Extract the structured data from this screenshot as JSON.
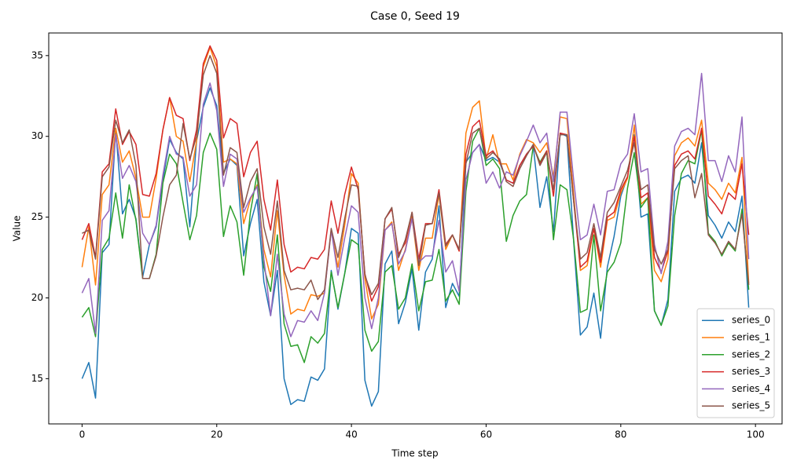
{
  "chart_data": {
    "type": "line",
    "title": "Case 0, Seed 19",
    "xlabel": "Time step",
    "ylabel": "Value",
    "x": [
      0,
      1,
      2,
      3,
      4,
      5,
      6,
      7,
      8,
      9,
      10,
      11,
      12,
      13,
      14,
      15,
      16,
      17,
      18,
      19,
      20,
      21,
      22,
      23,
      24,
      25,
      26,
      27,
      28,
      29,
      30,
      31,
      32,
      33,
      34,
      35,
      36,
      37,
      38,
      39,
      40,
      41,
      42,
      43,
      44,
      45,
      46,
      47,
      48,
      49,
      50,
      51,
      52,
      53,
      54,
      55,
      56,
      57,
      58,
      59,
      60,
      61,
      62,
      63,
      64,
      65,
      66,
      67,
      68,
      69,
      70,
      71,
      72,
      73,
      74,
      75,
      76,
      77,
      78,
      79,
      80,
      81,
      82,
      83,
      84,
      85,
      86,
      87,
      88,
      89,
      90,
      91,
      92,
      93,
      94,
      95,
      96,
      97,
      98,
      99
    ],
    "xlim": [
      -4.95,
      103.95
    ],
    "xticks": [
      0,
      20,
      40,
      60,
      80,
      100
    ],
    "ylim": [
      12.2,
      36.4
    ],
    "yticks": [
      15,
      20,
      25,
      30,
      35
    ],
    "legend": "lower right",
    "series": [
      {
        "name": "series_0",
        "color": "#1f77b4",
        "values": [
          15.0,
          16.0,
          13.8,
          22.8,
          23.3,
          30.4,
          25.2,
          26.1,
          24.9,
          21.3,
          23.3,
          24.4,
          27.3,
          29.8,
          29.0,
          28.6,
          24.4,
          29.7,
          31.8,
          33.0,
          31.9,
          27.7,
          28.6,
          28.2,
          22.6,
          24.6,
          26.1,
          21.0,
          18.9,
          21.7,
          15.0,
          13.4,
          13.7,
          13.6,
          15.1,
          14.9,
          15.6,
          21.7,
          19.3,
          21.5,
          24.3,
          24.0,
          14.9,
          13.3,
          14.2,
          22.1,
          22.9,
          18.4,
          19.7,
          21.8,
          18.0,
          21.6,
          22.4,
          25.7,
          19.4,
          20.9,
          20.1,
          28.4,
          29.0,
          29.5,
          28.5,
          28.7,
          28.4,
          27.3,
          27.1,
          28.2,
          28.9,
          29.4,
          25.6,
          27.5,
          24.1,
          30.2,
          30.0,
          23.5,
          17.7,
          18.2,
          20.3,
          17.5,
          21.9,
          23.8,
          26.3,
          27.5,
          30.1,
          25.0,
          25.2,
          19.2,
          18.3,
          19.9,
          26.6,
          27.4,
          27.6,
          27.1,
          29.6,
          25.1,
          24.5,
          23.7,
          24.7,
          24.1,
          26.3,
          19.4
        ]
      },
      {
        "name": "series_1",
        "color": "#ff7f0e",
        "values": [
          21.9,
          24.4,
          20.8,
          26.4,
          27.0,
          30.5,
          28.4,
          29.1,
          27.4,
          25.0,
          25.0,
          27.4,
          30.4,
          32.4,
          30.0,
          29.7,
          27.2,
          29.7,
          34.3,
          35.5,
          34.3,
          28.4,
          28.6,
          28.3,
          24.6,
          26.1,
          27.0,
          23.0,
          21.3,
          25.4,
          21.4,
          19.0,
          19.3,
          19.2,
          20.2,
          20.1,
          20.3,
          24.2,
          21.9,
          24.5,
          27.7,
          27.1,
          21.2,
          18.7,
          19.6,
          24.2,
          24.7,
          21.7,
          23.0,
          25.0,
          21.7,
          23.7,
          23.7,
          26.4,
          23.0,
          23.9,
          22.9,
          30.2,
          31.8,
          32.2,
          28.6,
          30.1,
          28.3,
          28.3,
          27.3,
          28.9,
          29.8,
          29.6,
          29.0,
          29.6,
          27.5,
          31.2,
          31.1,
          26.4,
          21.7,
          22.0,
          24.3,
          21.9,
          24.8,
          25.0,
          26.5,
          27.4,
          30.7,
          25.8,
          26.2,
          21.7,
          21.0,
          22.4,
          28.8,
          29.6,
          29.9,
          29.4,
          31.0,
          27.1,
          26.7,
          26.1,
          27.1,
          26.5,
          28.7,
          20.9
        ]
      },
      {
        "name": "series_2",
        "color": "#2ca02c",
        "values": [
          18.8,
          19.4,
          17.6,
          23.0,
          23.7,
          26.5,
          23.7,
          27.0,
          24.8,
          21.2,
          21.2,
          22.7,
          27.1,
          28.9,
          28.3,
          25.9,
          23.6,
          25.1,
          29.0,
          30.2,
          29.2,
          23.8,
          25.7,
          24.7,
          21.4,
          25.3,
          27.7,
          21.9,
          20.4,
          23.9,
          18.4,
          17.0,
          17.1,
          16.0,
          17.6,
          17.2,
          17.8,
          21.6,
          19.4,
          21.5,
          23.6,
          23.3,
          18.0,
          16.7,
          17.3,
          21.6,
          22.0,
          19.3,
          20.0,
          22.1,
          19.2,
          21.0,
          21.1,
          23.0,
          19.8,
          20.5,
          19.6,
          26.6,
          29.7,
          30.5,
          28.2,
          28.6,
          28.0,
          23.5,
          25.1,
          26.0,
          26.4,
          29.4,
          28.4,
          29.1,
          23.6,
          27.0,
          26.7,
          23.6,
          19.1,
          19.3,
          23.9,
          19.2,
          21.6,
          22.2,
          23.4,
          26.8,
          29.0,
          25.6,
          26.2,
          19.2,
          18.3,
          19.5,
          25.1,
          27.7,
          28.5,
          28.3,
          30.4,
          24.0,
          23.5,
          22.6,
          23.4,
          22.9,
          25.5,
          20.5
        ]
      },
      {
        "name": "series_3",
        "color": "#d62728",
        "values": [
          23.6,
          24.6,
          22.5,
          27.8,
          28.3,
          31.7,
          29.5,
          30.3,
          29.5,
          26.4,
          26.3,
          27.7,
          30.4,
          32.4,
          31.3,
          31.1,
          28.5,
          30.4,
          34.5,
          35.6,
          34.7,
          29.9,
          31.1,
          30.8,
          27.5,
          29.0,
          29.7,
          26.1,
          24.2,
          27.3,
          23.3,
          21.6,
          21.9,
          21.8,
          22.5,
          22.4,
          23.0,
          26.0,
          24.0,
          26.4,
          28.1,
          26.7,
          21.5,
          19.8,
          20.7,
          24.9,
          25.5,
          22.7,
          23.4,
          25.3,
          22.4,
          24.6,
          24.6,
          26.7,
          23.3,
          23.9,
          22.9,
          28.9,
          30.6,
          31.0,
          28.8,
          29.1,
          28.5,
          27.3,
          27.1,
          28.2,
          28.9,
          29.4,
          28.3,
          29.1,
          26.3,
          30.2,
          30.1,
          26.0,
          21.9,
          22.3,
          24.3,
          22.2,
          25.0,
          25.3,
          26.7,
          27.5,
          30.0,
          26.2,
          26.5,
          22.5,
          21.6,
          22.9,
          28.2,
          28.9,
          29.1,
          28.6,
          30.5,
          26.3,
          25.8,
          25.2,
          26.5,
          26.1,
          28.3,
          23.9
        ]
      },
      {
        "name": "series_4",
        "color": "#9467bd",
        "values": [
          20.3,
          21.2,
          17.8,
          24.8,
          25.4,
          30.1,
          27.4,
          28.2,
          27.2,
          24.0,
          23.3,
          24.5,
          27.6,
          30.0,
          28.9,
          28.7,
          26.3,
          27.0,
          32.0,
          33.3,
          31.6,
          26.9,
          28.9,
          28.6,
          25.3,
          26.2,
          26.9,
          22.4,
          18.9,
          22.7,
          19.0,
          17.6,
          18.6,
          18.5,
          19.2,
          18.6,
          20.3,
          24.2,
          21.4,
          23.7,
          25.7,
          25.3,
          20.0,
          18.1,
          20.0,
          24.2,
          24.6,
          22.1,
          22.9,
          24.9,
          22.2,
          22.6,
          22.6,
          24.8,
          21.6,
          22.3,
          20.4,
          27.3,
          29.0,
          29.5,
          27.1,
          27.8,
          26.8,
          27.8,
          27.6,
          28.8,
          29.7,
          30.7,
          29.6,
          30.2,
          27.2,
          31.5,
          31.5,
          27.3,
          23.6,
          23.9,
          25.8,
          23.9,
          26.6,
          26.7,
          28.3,
          28.9,
          31.4,
          27.8,
          28.0,
          23.3,
          21.5,
          23.5,
          29.4,
          30.3,
          30.5,
          30.1,
          33.9,
          28.5,
          28.5,
          27.2,
          28.8,
          27.8,
          31.2,
          22.4
        ]
      },
      {
        "name": "series_5",
        "color": "#8c564b",
        "values": [
          24.0,
          24.2,
          22.4,
          27.5,
          28.1,
          31.0,
          29.6,
          30.4,
          28.2,
          21.2,
          21.2,
          22.6,
          25.0,
          27.0,
          27.6,
          30.8,
          28.6,
          30.0,
          33.8,
          35.0,
          33.9,
          27.6,
          29.3,
          29.0,
          25.6,
          27.2,
          28.0,
          24.4,
          22.7,
          26.0,
          21.7,
          20.5,
          20.6,
          20.5,
          21.1,
          19.9,
          20.5,
          24.3,
          22.5,
          24.9,
          27.0,
          26.9,
          21.4,
          20.2,
          20.9,
          24.9,
          25.6,
          22.5,
          23.6,
          25.3,
          22.0,
          24.5,
          24.6,
          26.5,
          23.2,
          23.9,
          23.0,
          28.3,
          30.2,
          30.5,
          28.6,
          29.0,
          28.6,
          27.2,
          26.9,
          28.0,
          28.8,
          29.5,
          28.2,
          29.0,
          26.7,
          30.1,
          30.1,
          26.0,
          22.4,
          22.8,
          24.6,
          22.5,
          25.3,
          25.9,
          26.9,
          27.9,
          29.6,
          26.7,
          27.0,
          23.0,
          22.1,
          23.0,
          28.0,
          28.5,
          28.8,
          26.2,
          27.7,
          23.9,
          23.4,
          22.7,
          23.5,
          23.0,
          25.2,
          20.8
        ]
      }
    ]
  }
}
